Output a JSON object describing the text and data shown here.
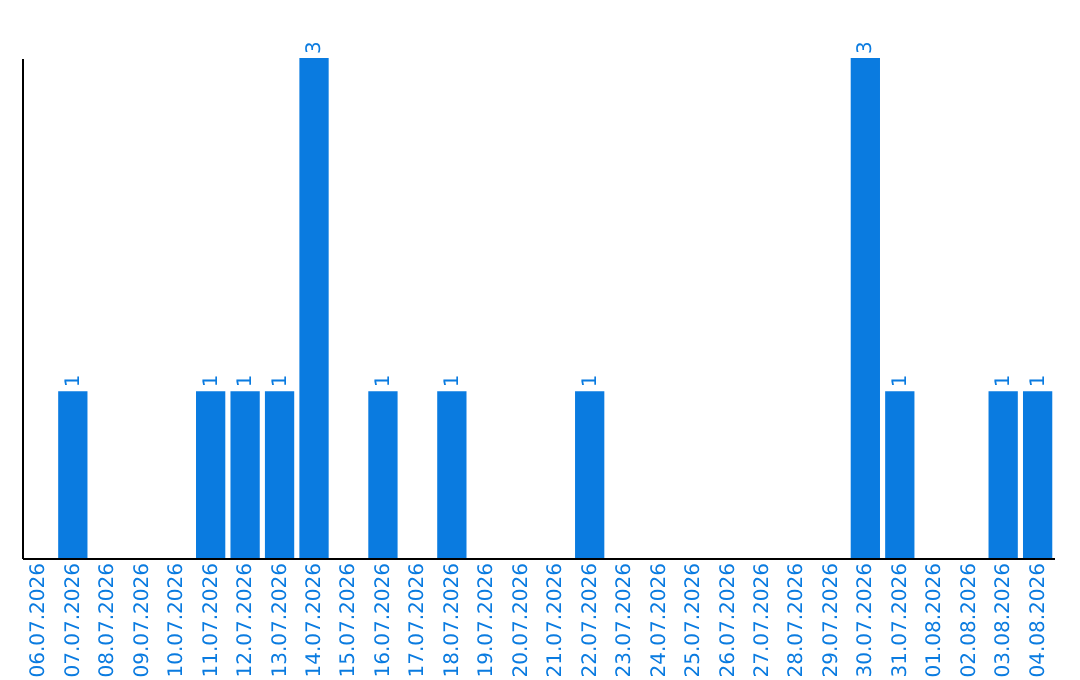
{
  "chart_data": {
    "type": "bar",
    "categories": [
      "06.07.2026",
      "07.07.2026",
      "08.07.2026",
      "09.07.2026",
      "10.07.2026",
      "11.07.2026",
      "12.07.2026",
      "13.07.2026",
      "14.07.2026",
      "15.07.2026",
      "16.07.2026",
      "17.07.2026",
      "18.07.2026",
      "19.07.2026",
      "20.07.2026",
      "21.07.2026",
      "22.07.2026",
      "23.07.2026",
      "24.07.2026",
      "25.07.2026",
      "26.07.2026",
      "27.07.2026",
      "28.07.2026",
      "29.07.2026",
      "30.07.2026",
      "31.07.2026",
      "01.08.2026",
      "02.08.2026",
      "03.08.2026",
      "04.08.2026"
    ],
    "values": [
      0,
      1,
      0,
      0,
      0,
      1,
      1,
      1,
      3,
      0,
      1,
      0,
      1,
      0,
      0,
      0,
      1,
      0,
      0,
      0,
      0,
      0,
      0,
      0,
      3,
      1,
      0,
      0,
      1,
      1
    ],
    "value_labels": [
      null,
      "1",
      null,
      null,
      null,
      "1",
      "1",
      "1",
      "3",
      null,
      "1",
      null,
      "1",
      null,
      null,
      null,
      "1",
      null,
      null,
      null,
      null,
      null,
      null,
      null,
      "3",
      "1",
      null,
      null,
      "1",
      "1"
    ],
    "color": "#0a7be0",
    "ylim": [
      0,
      3
    ],
    "grid": false,
    "tick_labels": "x"
  }
}
